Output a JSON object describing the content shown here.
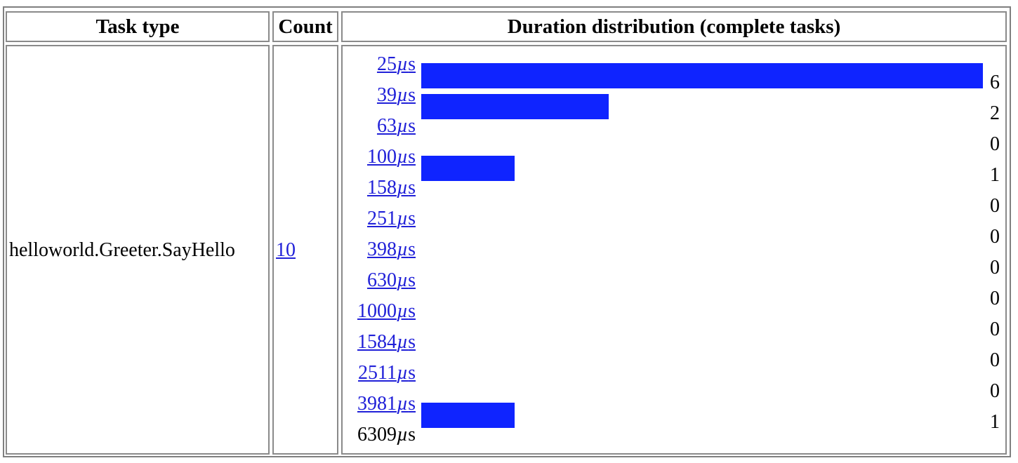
{
  "table": {
    "headers": {
      "task_type": "Task type",
      "count": "Count",
      "distribution": "Duration distribution (complete tasks)"
    },
    "row": {
      "task_type": "helloworld.Greeter.SayHello",
      "count": "10"
    }
  },
  "chart_data": {
    "type": "bar",
    "title": "Duration distribution (complete tasks)",
    "bucket_bounds": [
      "25µs",
      "39µs",
      "63µs",
      "100µs",
      "158µs",
      "251µs",
      "398µs",
      "630µs",
      "1000µs",
      "1584µs",
      "2511µs",
      "3981µs",
      "6309µs"
    ],
    "bucket_bound_is_link": [
      true,
      true,
      true,
      true,
      true,
      true,
      true,
      true,
      true,
      true,
      true,
      true,
      false
    ],
    "values": [
      6,
      2,
      0,
      1,
      0,
      0,
      0,
      0,
      0,
      0,
      0,
      1
    ],
    "value_labels": [
      "6",
      "2",
      "0",
      "1",
      "0",
      "0",
      "0",
      "0",
      "0",
      "0",
      "0",
      "1"
    ],
    "max": 6,
    "bar_color": "#0f24ff"
  }
}
